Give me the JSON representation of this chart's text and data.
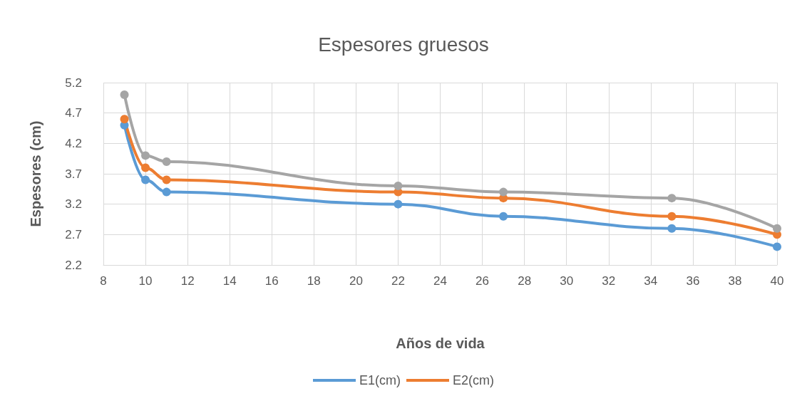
{
  "chart_data": {
    "type": "line",
    "title": "Espesores gruesos",
    "xlabel": "Años de vida",
    "ylabel": "Espesores (cm)",
    "x": [
      9,
      10,
      11,
      22,
      27,
      35,
      40
    ],
    "series": [
      {
        "name": "E1(cm)",
        "color": "#5b9bd5",
        "values": [
          4.5,
          3.6,
          3.4,
          3.2,
          3.0,
          2.8,
          2.5
        ]
      },
      {
        "name": "E2(cm)",
        "color": "#ed7d31",
        "values": [
          4.6,
          3.8,
          3.6,
          3.4,
          3.3,
          3.0,
          2.7
        ]
      },
      {
        "color": "#a5a5a5",
        "values": [
          5.0,
          4.0,
          3.9,
          3.5,
          3.4,
          3.3,
          2.8
        ]
      }
    ],
    "xlim": [
      8,
      40
    ],
    "xticks": [
      8,
      10,
      12,
      14,
      16,
      18,
      20,
      22,
      24,
      26,
      28,
      30,
      32,
      34,
      36,
      38,
      40
    ],
    "ylim": [
      2.2,
      5.2
    ],
    "yticks": [
      2.2,
      2.7,
      3.2,
      3.7,
      4.2,
      4.7,
      5.2
    ],
    "grid": true,
    "legend": "bottom",
    "marker": "circle",
    "line_style": "solid"
  }
}
